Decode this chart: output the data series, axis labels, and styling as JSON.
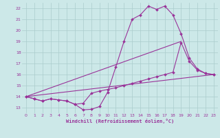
{
  "xlabel": "Windchill (Refroidissement éolien,°C)",
  "xlim": [
    -0.5,
    23.5
  ],
  "ylim": [
    12.5,
    22.5
  ],
  "xticks": [
    0,
    1,
    2,
    3,
    4,
    5,
    6,
    7,
    8,
    9,
    10,
    11,
    12,
    13,
    14,
    15,
    16,
    17,
    18,
    19,
    20,
    21,
    22,
    23
  ],
  "yticks": [
    13,
    14,
    15,
    16,
    17,
    18,
    19,
    20,
    21,
    22
  ],
  "bg_color": "#cce8e8",
  "grid_color": "#aacccc",
  "line_color": "#993399",
  "line1_x": [
    0,
    1,
    2,
    3,
    4,
    5,
    6,
    7,
    8,
    9,
    10,
    11,
    12,
    13,
    14,
    15,
    16,
    17,
    18,
    19,
    20,
    21,
    22,
    23
  ],
  "line1_y": [
    14.0,
    13.8,
    13.6,
    13.8,
    13.7,
    13.6,
    13.3,
    12.8,
    12.85,
    13.1,
    14.4,
    16.7,
    19.0,
    21.0,
    21.4,
    22.2,
    21.9,
    22.2,
    21.4,
    19.7,
    17.5,
    16.5,
    16.1,
    16.0
  ],
  "line2_x": [
    0,
    1,
    2,
    3,
    4,
    5,
    6,
    7,
    8,
    9,
    10,
    11,
    12,
    13,
    14,
    15,
    16,
    17,
    18,
    19,
    20,
    21,
    22,
    23
  ],
  "line2_y": [
    14.0,
    13.8,
    13.6,
    13.8,
    13.7,
    13.6,
    13.3,
    13.4,
    14.3,
    14.5,
    14.65,
    14.8,
    15.0,
    15.2,
    15.4,
    15.6,
    15.8,
    16.0,
    16.2,
    18.9,
    17.2,
    16.4,
    16.1,
    16.0
  ],
  "line3_x": [
    0,
    23
  ],
  "line3_y": [
    14.0,
    16.0
  ],
  "line4_x": [
    0,
    19
  ],
  "line4_y": [
    14.0,
    19.0
  ]
}
